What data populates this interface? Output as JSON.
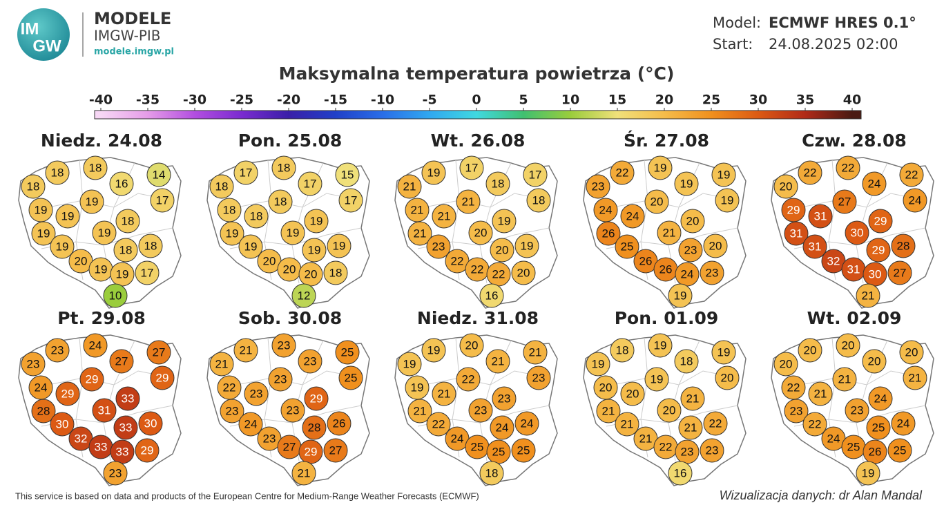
{
  "header": {
    "logo": [
      "IM",
      "GW"
    ],
    "brand": "MODELE",
    "org": "IMGW-PIB",
    "url": "modele.imgw.pl",
    "model_label": "Model:",
    "model": "ECMWF HRES 0.1°",
    "start_label": "Start:",
    "start": "24.08.2025 02:00"
  },
  "title": "Maksymalna temperatura powietrza (°C)",
  "colorbar": {
    "ticks": [
      -40,
      -35,
      -30,
      -25,
      -20,
      -15,
      -10,
      -5,
      0,
      5,
      10,
      15,
      20,
      25,
      30,
      35,
      40
    ],
    "colors": [
      "#f7d7f5",
      "#e59ce8",
      "#b24ee0",
      "#7a2bd0",
      "#3a1fa8",
      "#2040c8",
      "#2a6ee8",
      "#30a8f0",
      "#40d8e0",
      "#40c070",
      "#9acd3c",
      "#f0e07a",
      "#f5bc4a",
      "#f0901e",
      "#dc5a14",
      "#b02a18",
      "#4a1a12"
    ]
  },
  "panels": [
    {
      "title": "Niedz. 24.08",
      "values": [
        18,
        18,
        18,
        16,
        14,
        17,
        19,
        19,
        19,
        18,
        19,
        19,
        19,
        18,
        18,
        20,
        19,
        19,
        17,
        10
      ]
    },
    {
      "title": "Pon. 25.08",
      "values": [
        18,
        17,
        18,
        17,
        15,
        17,
        18,
        18,
        18,
        19,
        19,
        19,
        19,
        19,
        19,
        20,
        20,
        20,
        18,
        12
      ]
    },
    {
      "title": "Wt. 26.08",
      "values": [
        21,
        19,
        17,
        18,
        17,
        18,
        21,
        21,
        21,
        19,
        21,
        23,
        20,
        20,
        19,
        22,
        22,
        22,
        20,
        16
      ]
    },
    {
      "title": "Śr. 27.08",
      "values": [
        23,
        22,
        19,
        19,
        19,
        19,
        24,
        24,
        20,
        20,
        26,
        25,
        21,
        23,
        20,
        26,
        26,
        24,
        23,
        19
      ]
    },
    {
      "title": "Czw. 28.08",
      "values": [
        20,
        22,
        22,
        24,
        22,
        24,
        29,
        31,
        27,
        29,
        31,
        31,
        30,
        29,
        28,
        32,
        31,
        30,
        27,
        21
      ]
    },
    {
      "title": "Pt. 29.08",
      "values": [
        23,
        23,
        24,
        27,
        27,
        29,
        24,
        29,
        29,
        33,
        28,
        30,
        31,
        33,
        30,
        32,
        33,
        33,
        29,
        23
      ]
    },
    {
      "title": "Sob. 30.08",
      "values": [
        21,
        21,
        23,
        23,
        25,
        25,
        22,
        23,
        23,
        29,
        23,
        24,
        23,
        28,
        26,
        23,
        27,
        29,
        27,
        21
      ]
    },
    {
      "title": "Niedz. 31.08",
      "values": [
        19,
        19,
        20,
        21,
        21,
        23,
        19,
        21,
        22,
        23,
        21,
        22,
        23,
        24,
        24,
        24,
        25,
        25,
        25,
        18
      ]
    },
    {
      "title": "Pon. 01.09",
      "values": [
        19,
        18,
        19,
        18,
        19,
        20,
        20,
        20,
        19,
        21,
        21,
        21,
        20,
        21,
        22,
        21,
        22,
        23,
        23,
        16
      ]
    },
    {
      "title": "Wt. 02.09",
      "values": [
        20,
        20,
        20,
        20,
        20,
        21,
        22,
        21,
        21,
        24,
        23,
        22,
        23,
        25,
        24,
        24,
        25,
        26,
        25,
        19
      ]
    }
  ],
  "footer": {
    "source": "This service is based on data and products of the European Centre for Medium-Range Weather Forecasts (ECMWF)",
    "credit": "Wizualizacja danych: dr Alan Mandal"
  }
}
